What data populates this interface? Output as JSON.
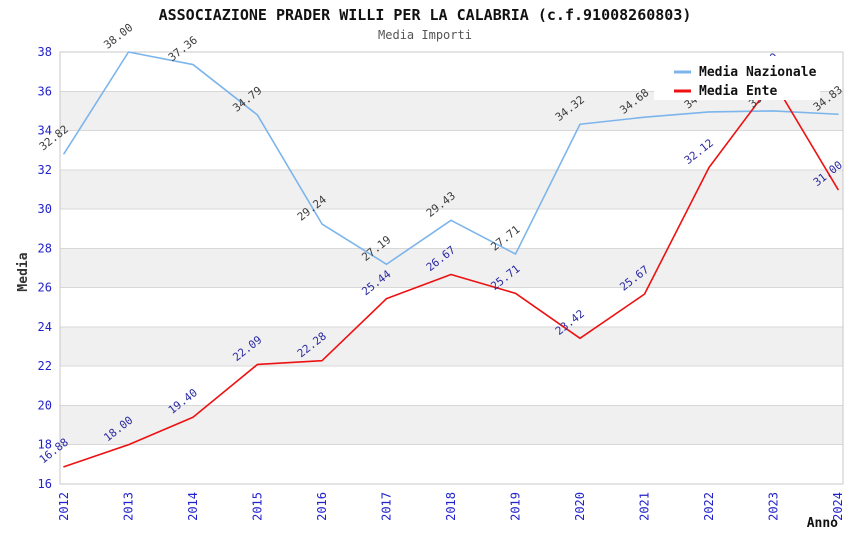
{
  "chart_data": {
    "type": "line",
    "title": "ASSOCIAZIONE PRADER WILLI PER LA CALABRIA (c.f.91008260803)",
    "subtitle": "Media Importi",
    "xlabel": "Anno",
    "ylabel": "Media",
    "categories": [
      "2012",
      "2013",
      "2014",
      "2015",
      "2016",
      "2017",
      "2018",
      "2019",
      "2020",
      "2021",
      "2022",
      "2023",
      "2024"
    ],
    "ylim": [
      16,
      38
    ],
    "ytick_step": 2,
    "grid": "horizontal gridlines, alternating gray bands",
    "legend_position": "inside-top-right",
    "axis_tick_color": "#2222cc",
    "band_color": "#f0f0f0",
    "gridline_color": "#d8d8d8",
    "series": [
      {
        "name": "Media Nazionale",
        "color": "#7cb5ec",
        "label_color": "#3c3c3c",
        "values": [
          32.82,
          38.0,
          37.36,
          34.79,
          29.24,
          27.19,
          29.43,
          27.71,
          34.32,
          34.68,
          34.95,
          35.0,
          34.83
        ]
      },
      {
        "name": "Media Ente",
        "color": "#ee1111",
        "label_color": "#2b2ba3",
        "values": [
          16.88,
          18.0,
          19.4,
          22.09,
          22.28,
          25.44,
          26.67,
          25.71,
          23.42,
          25.67,
          32.12,
          36.5,
          31.0
        ]
      }
    ]
  }
}
